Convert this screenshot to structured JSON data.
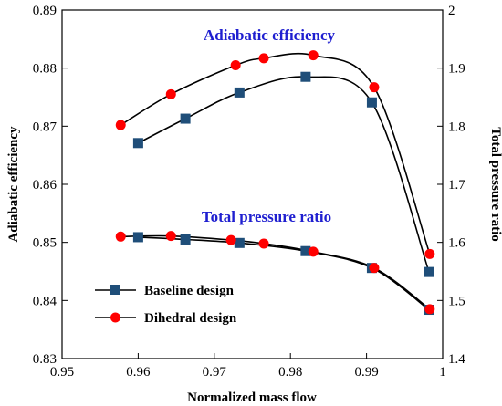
{
  "chart_data": {
    "type": "line",
    "x_axis": {
      "label": "Normalized mass flow",
      "range": [
        0.95,
        1.0
      ],
      "ticks": [
        "0.95",
        "0.96",
        "0.97",
        "0.98",
        "0.99",
        "1"
      ]
    },
    "y_axis_left": {
      "label": "Adiabatic efficiency",
      "range": [
        0.83,
        0.89
      ],
      "ticks": [
        "0.83",
        "0.84",
        "0.85",
        "0.86",
        "0.87",
        "0.88",
        "0.89"
      ]
    },
    "y_axis_right": {
      "label": "Total pressure ratio",
      "range": [
        1.4,
        2.0
      ],
      "ticks": [
        "1.4",
        "1.5",
        "1.6",
        "1.7",
        "1.8",
        "1.9",
        "2"
      ]
    },
    "annotations": {
      "efficiency": "Adiabatic efficiency",
      "pressure": "Total pressure ratio"
    },
    "legend": {
      "placement": "bottom-left",
      "entries": [
        "Baseline design",
        "Dihedral design"
      ]
    },
    "grid": false,
    "series": [
      {
        "name": "Baseline design",
        "axis": "left",
        "color": "#1f4e79",
        "marker": "square",
        "x": [
          0.96,
          0.9662,
          0.9733,
          0.982,
          0.9907,
          0.9982
        ],
        "y": [
          0.8671,
          0.8713,
          0.8758,
          0.8785,
          0.8741,
          0.8449
        ]
      },
      {
        "name": "Dihedral design",
        "axis": "left",
        "color": "#ff0000",
        "marker": "circle",
        "x": [
          0.9577,
          0.9643,
          0.9728,
          0.9765,
          0.983,
          0.991,
          0.9983
        ],
        "y": [
          0.8702,
          0.8755,
          0.8805,
          0.8817,
          0.8822,
          0.8767,
          0.848
        ]
      },
      {
        "name": "Baseline design",
        "axis": "right",
        "color": "#1f4e79",
        "marker": "square",
        "x": [
          0.96,
          0.9662,
          0.9733,
          0.982,
          0.9907,
          0.9982
        ],
        "y": [
          1.609,
          1.605,
          1.599,
          1.585,
          1.556,
          1.484
        ]
      },
      {
        "name": "Dihedral design",
        "axis": "right",
        "color": "#ff0000",
        "marker": "circle",
        "x": [
          0.9577,
          0.9643,
          0.9722,
          0.9765,
          0.983,
          0.991,
          0.9983
        ],
        "y": [
          1.61,
          1.611,
          1.604,
          1.598,
          1.584,
          1.556,
          1.485
        ]
      }
    ]
  }
}
